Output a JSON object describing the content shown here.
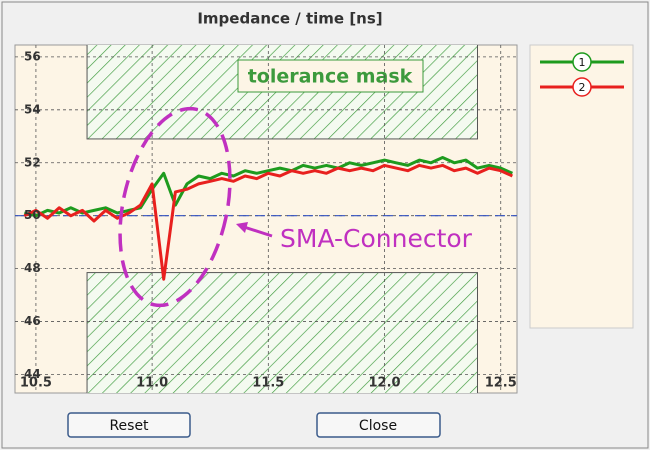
{
  "chart_data": {
    "type": "line",
    "title": "Impedance  / time [ns]",
    "x": [
      10.45,
      10.5,
      10.55,
      10.6,
      10.65,
      10.7,
      10.75,
      10.8,
      10.85,
      10.9,
      10.95,
      11.0,
      11.05,
      11.1,
      11.15,
      11.2,
      11.25,
      11.3,
      11.35,
      11.4,
      11.45,
      11.5,
      11.55,
      11.6,
      11.65,
      11.7,
      11.75,
      11.8,
      11.85,
      11.9,
      11.95,
      12.0,
      12.05,
      12.1,
      12.15,
      12.2,
      12.25,
      12.3,
      12.35,
      12.4,
      12.45,
      12.5,
      12.55
    ],
    "series": [
      {
        "name": "1",
        "color": "#1e9b1e",
        "values": [
          50.1,
          50.0,
          50.2,
          50.1,
          50.3,
          50.1,
          50.2,
          50.3,
          50.1,
          50.2,
          50.3,
          51.0,
          51.6,
          50.4,
          51.2,
          51.5,
          51.4,
          51.6,
          51.5,
          51.7,
          51.6,
          51.7,
          51.8,
          51.7,
          51.9,
          51.8,
          51.9,
          51.8,
          52.0,
          51.9,
          52.0,
          52.1,
          52.0,
          51.9,
          52.1,
          52.0,
          52.2,
          52.0,
          52.1,
          51.8,
          51.9,
          51.8,
          51.6
        ]
      },
      {
        "name": "2",
        "color": "#e8201e",
        "values": [
          50.0,
          50.2,
          49.9,
          50.3,
          50.0,
          50.2,
          49.8,
          50.2,
          49.9,
          50.1,
          50.4,
          51.2,
          47.6,
          50.9,
          51.0,
          51.2,
          51.3,
          51.4,
          51.3,
          51.5,
          51.4,
          51.6,
          51.5,
          51.7,
          51.6,
          51.7,
          51.6,
          51.8,
          51.7,
          51.8,
          51.7,
          51.9,
          51.8,
          51.7,
          51.9,
          51.8,
          51.9,
          51.7,
          51.8,
          51.6,
          51.8,
          51.7,
          51.5
        ]
      }
    ],
    "xlim": [
      10.41,
      12.57
    ],
    "xticks": [
      10.5,
      {
        "value": 11,
        "label": "11.0"
      },
      11.5,
      {
        "value": 12,
        "label": "12.0"
      },
      12.5
    ],
    "ylim": [
      43.3,
      56.45
    ],
    "yticks": [
      44,
      46,
      48,
      50,
      52,
      54,
      56
    ],
    "grid": true,
    "reference": 50,
    "mask": {
      "label": "tolerance mask",
      "x": [
        10.72,
        12.4
      ],
      "upper_min": 52.9,
      "lower_max": 47.85
    },
    "annotation": "SMA-Connector"
  },
  "buttons": [
    "Reset",
    "Close"
  ]
}
